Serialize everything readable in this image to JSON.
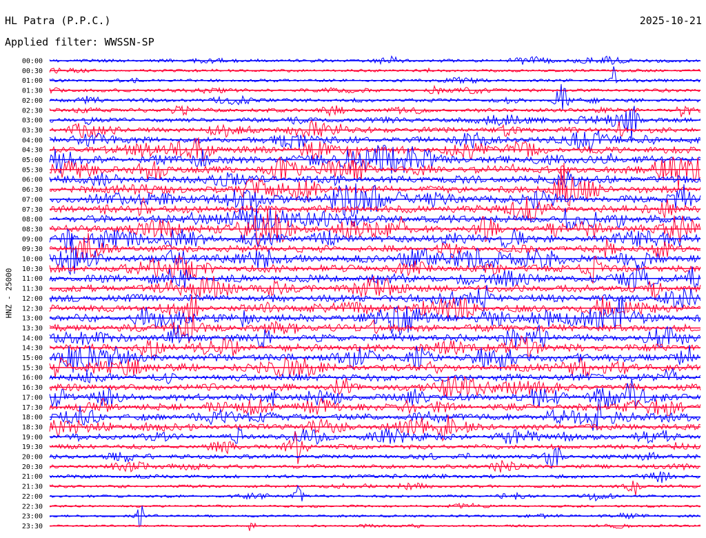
{
  "header": {
    "station": "HL Patra (P.P.C.)",
    "date": "2025-10-21",
    "filter_label": "Applied filter:",
    "filter_value": "WWSSN-SP"
  },
  "channel_label": "HNZ - 25000",
  "colors": {
    "trace_a": "#0000ff",
    "trace_b": "#ff0033",
    "background": "#ffffff",
    "text": "#000000"
  },
  "chart_data": {
    "type": "line",
    "plot_kind": "helicorder",
    "title": "HL Patra (P.P.C.)",
    "ylabel": "HNZ - 25000",
    "legend": "none",
    "grid": false,
    "trace_minutes": 30,
    "row_labels": [
      "00:00",
      "00:30",
      "01:00",
      "01:30",
      "02:00",
      "02:30",
      "03:00",
      "03:30",
      "04:00",
      "04:30",
      "05:00",
      "05:30",
      "06:00",
      "06:30",
      "07:00",
      "07:30",
      "08:00",
      "08:30",
      "09:00",
      "09:30",
      "10:00",
      "10:30",
      "11:00",
      "11:30",
      "12:00",
      "12:30",
      "13:00",
      "13:30",
      "14:00",
      "14:30",
      "15:00",
      "15:30",
      "16:00",
      "16:30",
      "17:00",
      "17:30",
      "18:00",
      "18:30",
      "19:00",
      "19:30",
      "20:00",
      "20:30",
      "21:00",
      "21:30",
      "22:00",
      "22:30",
      "23:00",
      "23:30"
    ],
    "trace_colors": [
      "#0000ff",
      "#ff0033"
    ],
    "relative_activity": [
      0.35,
      0.25,
      0.3,
      0.35,
      0.45,
      0.45,
      0.55,
      0.75,
      0.85,
      0.95,
      1.0,
      1.0,
      1.0,
      1.0,
      1.0,
      1.0,
      1.0,
      1.0,
      1.0,
      1.0,
      1.0,
      1.0,
      1.0,
      1.0,
      1.0,
      1.0,
      1.0,
      1.0,
      1.0,
      1.0,
      1.0,
      1.0,
      0.95,
      0.95,
      0.9,
      0.9,
      0.85,
      0.8,
      0.7,
      0.6,
      0.5,
      0.45,
      0.38,
      0.3,
      0.25,
      0.2,
      0.2,
      0.18
    ]
  }
}
